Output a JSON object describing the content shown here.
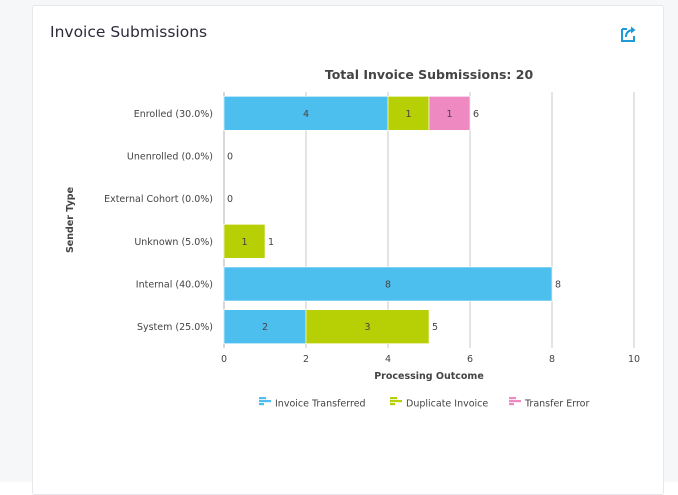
{
  "card": {
    "title": "Invoice Submissions"
  },
  "icons": {
    "export": "export-icon"
  },
  "colors": {
    "accent": "#1e9bd7",
    "gridline": "#c8c8c8",
    "axis": "#b0b0b0"
  },
  "chart_data": {
    "type": "bar",
    "orientation": "horizontal",
    "stacked": true,
    "title": "Total Invoice Submissions: 20",
    "xlabel": "Processing Outcome",
    "ylabel": "Sender Type",
    "xlim": [
      0,
      10
    ],
    "xticks": [
      0,
      2,
      4,
      6,
      8,
      10
    ],
    "grid": true,
    "legend_position": "bottom",
    "categories": [
      "Enrolled (30.0%)",
      "Unenrolled (0.0%)",
      "External Cohort (0.0%)",
      "Unknown (5.0%)",
      "Internal (40.0%)",
      "System (25.0%)"
    ],
    "totals": [
      6,
      0,
      0,
      1,
      8,
      5
    ],
    "series": [
      {
        "name": "Invoice Transferred",
        "color": "#4dbfee",
        "values": [
          4,
          0,
          0,
          0,
          8,
          2
        ]
      },
      {
        "name": "Duplicate Invoice",
        "color": "#b7cf05",
        "values": [
          1,
          0,
          0,
          1,
          0,
          3
        ]
      },
      {
        "name": "Transfer Error",
        "color": "#ef89c2",
        "values": [
          1,
          0,
          0,
          0,
          0,
          0
        ]
      }
    ]
  }
}
